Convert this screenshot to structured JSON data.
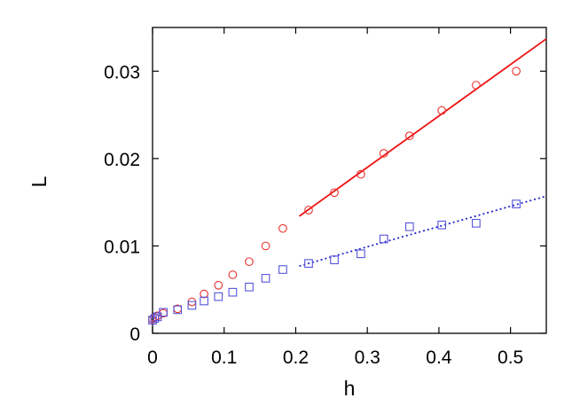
{
  "chart_data": {
    "type": "scatter",
    "title": "",
    "xlabel": "h",
    "ylabel": "L",
    "xlim": [
      0,
      0.55
    ],
    "ylim": [
      0,
      0.035
    ],
    "grid": false,
    "legend": "none",
    "x_ticks": [
      {
        "value": 0,
        "label": "0"
      },
      {
        "value": 0.1,
        "label": "0.1"
      },
      {
        "value": 0.2,
        "label": "0.2"
      },
      {
        "value": 0.3,
        "label": "0.3"
      },
      {
        "value": 0.4,
        "label": "0.4"
      },
      {
        "value": 0.5,
        "label": "0.5"
      }
    ],
    "y_ticks": [
      {
        "value": 0,
        "label": "0"
      },
      {
        "value": 0.01,
        "label": "0.01"
      },
      {
        "value": 0.02,
        "label": "0.02"
      },
      {
        "value": 0.03,
        "label": "0.03"
      }
    ],
    "series": [
      {
        "marker": "circle",
        "color": "#e8322e",
        "points": [
          [
            0.0,
            0.0016
          ],
          [
            0.003,
            0.0018
          ],
          [
            0.007,
            0.002
          ],
          [
            0.015,
            0.0023
          ],
          [
            0.035,
            0.0028
          ],
          [
            0.055,
            0.0036
          ],
          [
            0.072,
            0.0045
          ],
          [
            0.092,
            0.0055
          ],
          [
            0.112,
            0.0067
          ],
          [
            0.135,
            0.0082
          ],
          [
            0.158,
            0.01
          ],
          [
            0.182,
            0.012
          ],
          [
            0.218,
            0.0141
          ],
          [
            0.254,
            0.0161
          ],
          [
            0.291,
            0.0182
          ],
          [
            0.323,
            0.0206
          ],
          [
            0.359,
            0.0226
          ],
          [
            0.404,
            0.0255
          ],
          [
            0.452,
            0.0284
          ],
          [
            0.508,
            0.03
          ]
        ]
      },
      {
        "marker": "square",
        "color": "#5555dd",
        "points": [
          [
            0.0,
            0.0015
          ],
          [
            0.003,
            0.0017
          ],
          [
            0.007,
            0.0019
          ],
          [
            0.015,
            0.0024
          ],
          [
            0.035,
            0.0027
          ],
          [
            0.055,
            0.0032
          ],
          [
            0.072,
            0.0037
          ],
          [
            0.092,
            0.0042
          ],
          [
            0.112,
            0.0047
          ],
          [
            0.135,
            0.0053
          ],
          [
            0.158,
            0.0063
          ],
          [
            0.182,
            0.0073
          ],
          [
            0.218,
            0.008
          ],
          [
            0.254,
            0.0084
          ],
          [
            0.291,
            0.0091
          ],
          [
            0.323,
            0.0108
          ],
          [
            0.359,
            0.0122
          ],
          [
            0.404,
            0.0124
          ],
          [
            0.452,
            0.0126
          ],
          [
            0.508,
            0.0148
          ]
        ]
      }
    ],
    "fit_lines": [
      {
        "style": "solid",
        "color": "#ee1111",
        "from": [
          0.205,
          0.0134
        ],
        "to": [
          0.55,
          0.0337
        ]
      },
      {
        "style": "dotted",
        "color": "#2222cc",
        "from": [
          0.205,
          0.0077
        ],
        "to": [
          0.55,
          0.0157
        ]
      }
    ]
  }
}
